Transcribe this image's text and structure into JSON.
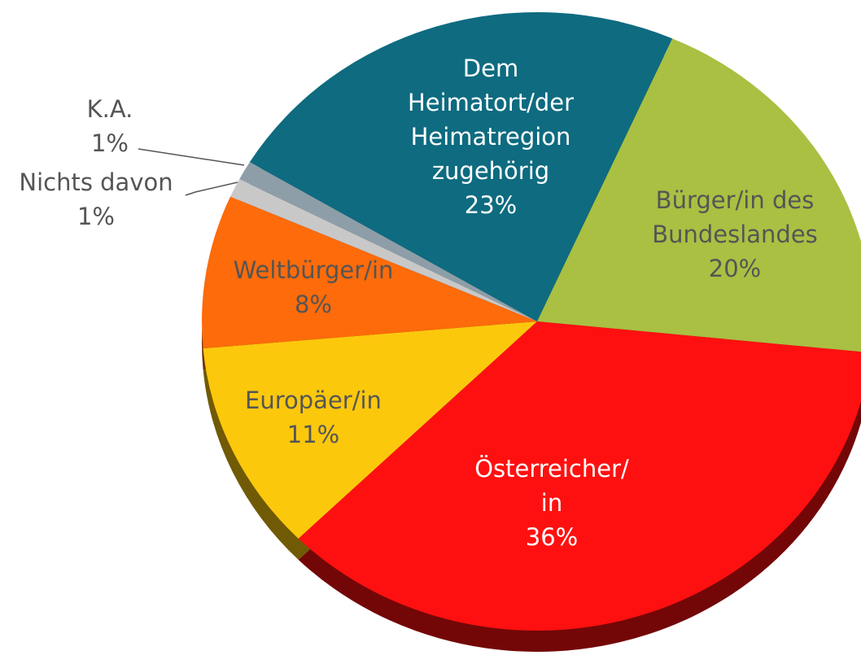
{
  "chart_data": {
    "type": "pie",
    "categories": [
      [
        "Dem",
        "Heimatort/der",
        "Heimatregion",
        "zugehörig"
      ],
      [
        "Bürger/in des",
        "Bundeslandes"
      ],
      [
        "Österreicher/",
        "in"
      ],
      [
        "Europäer/in"
      ],
      [
        "Weltbürger/in"
      ],
      [
        "Nichts davon"
      ],
      [
        "K.A."
      ]
    ],
    "values": [
      23,
      20,
      36,
      11,
      8,
      1,
      1
    ],
    "value_labels": [
      "23%",
      "20%",
      "36%",
      "11%",
      "8%",
      "1%",
      "1%"
    ],
    "colors": [
      "#0e6b80",
      "#a9c043",
      "#ff1010",
      "#fcc80c",
      "#fd6b0a",
      "#c8c8c8",
      "#8e9ea8"
    ]
  }
}
